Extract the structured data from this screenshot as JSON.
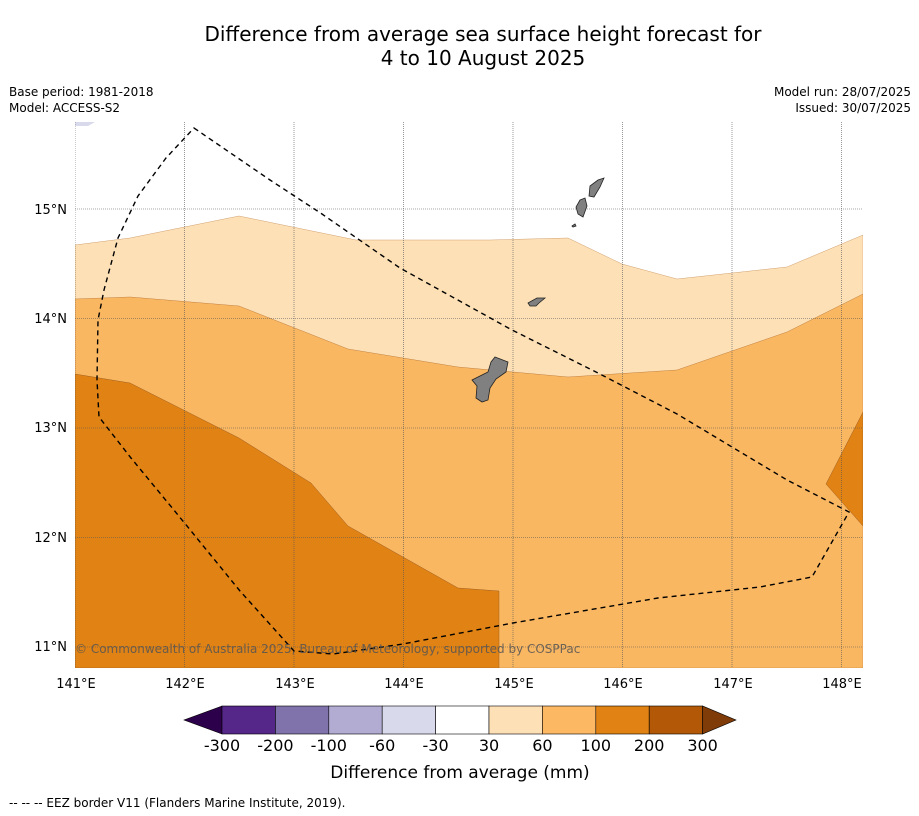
{
  "title_line1": "Difference from average sea surface height forecast for",
  "title_line2": "4 to 10 August 2025",
  "meta_left": {
    "base_period": "Base period: 1981-2018",
    "model": "Model: ACCESS-S2"
  },
  "meta_right": {
    "model_run": "Model run: 28/07/2025",
    "issued": "Issued: 30/07/2025"
  },
  "map": {
    "lon_range": [
      141.0,
      148.2
    ],
    "lat_range": [
      10.8,
      15.8
    ],
    "lon_ticks": [
      "141°E",
      "142°E",
      "143°E",
      "144°E",
      "145°E",
      "146°E",
      "147°E",
      "148°E"
    ],
    "lat_ticks": [
      "15°N",
      "14°N",
      "13°N",
      "12°N",
      "11°N"
    ],
    "copyright": "© Commonwealth of Australia 2025, Bureau of Meteorology, supported by COSPPac",
    "colors": {
      "band_30_60": "#fde0b6",
      "band_60_100": "#fab762",
      "band_100_200": "#e08214",
      "band_200_300": "#b35806",
      "land": "#808080"
    }
  },
  "colorbar": {
    "ticks": [
      "-300",
      "-200",
      "-100",
      "-60",
      "-30",
      "30",
      "60",
      "100",
      "200",
      "300"
    ],
    "colors": [
      "#2d004b",
      "#542788",
      "#8073ac",
      "#b2abd2",
      "#d8daeb",
      "#ffffff",
      "#fee0b6",
      "#fdb863",
      "#e08214",
      "#b35806",
      "#7f3b08"
    ],
    "label": "Difference from average (mm)"
  },
  "footer": "--  --  -- EEZ border V11 (Flanders Marine Institute, 2019)."
}
